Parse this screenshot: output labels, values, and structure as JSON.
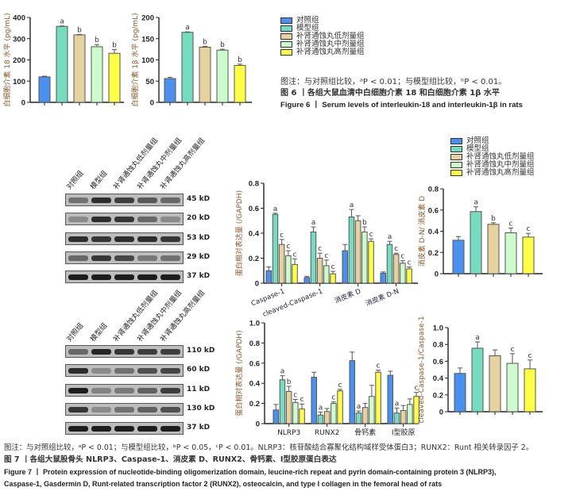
{
  "groups": [
    "对照组",
    "模型组",
    "补肾通蚀丸低剂量组",
    "补肾通蚀丸中剂量组",
    "补肾通蚀丸高剂量组"
  ],
  "group_colors": [
    "#4a90f0",
    "#76dcc0",
    "#e6d29f",
    "#ccfccc",
    "#ffff44"
  ],
  "figure6": {
    "note": "图注：与对照组比较，ᵃP < 0.01；与模型组比较，ᵇP < 0.01。",
    "title_cn": "图 6 丨各组大鼠血清中白细胞介素 18 和白细胞介素 1β 水平",
    "title_en": "Figure 6  丨  Serum levels of interleukin-18 and interleukin-1β in rats"
  },
  "figure7": {
    "note": "图注：与对照组比较，ᵃP < 0.01；与模型组比较，ᵇP < 0.05，ᶜP < 0.01。NLRP3：核苷酸结合寡聚化结构域样受体蛋白3；RUNX2：Runt 相关转录因子 2。",
    "title_cn": "图 7 丨各组大鼠股骨头 NLRP3、Caspase-1、消皮素 D、RUNX2、骨钙素、Ⅰ型胶原蛋白表达",
    "title_en_1": "Figure 7  丨  Protein expression of nucleotide-binding oligomerization domain, leucine-rich repeat and pyrin domain-containing protein 3 (NLRP3),",
    "title_en_2": "Caspase-1, Gasdermin D, Runt-related transcription factor 2 (RUNX2), osteocalcin, and type I collagen in the femoral head of rats"
  },
  "blot1": {
    "rows": [
      {
        "label": "Caspase-1",
        "kd": "45 kD"
      },
      {
        "label": "cleaved-Caspase-1",
        "kd": "20 kD"
      },
      {
        "label": "消皮素 D",
        "kd": "53 kD"
      },
      {
        "label": "消皮素 D-N",
        "kd": "29 kD"
      },
      {
        "label": "GAPDH",
        "kd": "37 kD"
      }
    ]
  },
  "blot2": {
    "rows": [
      {
        "label": "NLRP3",
        "kd": "110 kD"
      },
      {
        "label": "RUNX2",
        "kd": "60 kD"
      },
      {
        "label": "骨钙素",
        "kd": "11 kD"
      },
      {
        "label": "Ⅰ型胶原",
        "kd": "130 kD"
      },
      {
        "label": "GAPDH",
        "kd": "37 kD"
      }
    ]
  },
  "chart_data": [
    {
      "id": "il18",
      "type": "bar",
      "ylabel": "白细胞介素 18 水平 (pg/mL)",
      "ylim": [
        0,
        400
      ],
      "yticks": [
        "0",
        "100",
        "200",
        "300",
        "400"
      ],
      "categories": [
        ""
      ],
      "series_values": [
        [
          120
        ],
        [
          358
        ],
        [
          318
        ],
        [
          262
        ],
        [
          231
        ]
      ],
      "errors": [
        [
          3
        ],
        [
          2
        ],
        [
          2
        ],
        [
          10
        ],
        [
          18
        ]
      ],
      "sig": [
        [
          ""
        ],
        [
          "a"
        ],
        [
          "b"
        ],
        [
          "b"
        ],
        [
          "b"
        ]
      ]
    },
    {
      "id": "il1b",
      "type": "bar",
      "ylabel": "白细胞介素 1β 水平 (pg/mL)",
      "ylim": [
        0,
        200
      ],
      "yticks": [
        "0",
        "50",
        "100",
        "150",
        "200"
      ],
      "categories": [
        ""
      ],
      "series_values": [
        [
          56
        ],
        [
          165
        ],
        [
          130
        ],
        [
          123
        ],
        [
          87
        ]
      ],
      "errors": [
        [
          3
        ],
        [
          1
        ],
        [
          2
        ],
        [
          2
        ],
        [
          3
        ]
      ],
      "sig": [
        [
          ""
        ],
        [
          "a"
        ],
        [
          "b"
        ],
        [
          "b"
        ],
        [
          "b"
        ]
      ]
    },
    {
      "id": "pyro",
      "type": "bar",
      "ylabel": "蛋白相对表达量 (/GAPDH)",
      "ylim": [
        0,
        0.8
      ],
      "yticks": [
        "0",
        "0.2",
        "0.4",
        "0.6",
        "0.8"
      ],
      "categories": [
        "Caspase-1",
        "cleaved-Caspase-1",
        "消皮素 D",
        "消皮素 D-N"
      ],
      "series_values": [
        [
          0.1,
          0.045,
          0.26,
          0.08
        ],
        [
          0.55,
          0.41,
          0.53,
          0.31
        ],
        [
          0.31,
          0.2,
          0.5,
          0.23
        ],
        [
          0.22,
          0.14,
          0.41,
          0.16
        ],
        [
          0.15,
          0.075,
          0.335,
          0.115
        ]
      ],
      "errors": [
        [
          0.03,
          0.01,
          0.05,
          0.01
        ],
        [
          0.01,
          0.04,
          0.06,
          0.025
        ],
        [
          0.04,
          0.04,
          0.04,
          0.01
        ],
        [
          0.04,
          0.045,
          0.04,
          0.02
        ],
        [
          0.045,
          0.02,
          0.02,
          0.015
        ]
      ],
      "sig": [
        [
          "",
          "",
          "",
          ""
        ],
        [
          "a",
          "a",
          "a",
          "a"
        ],
        [
          "c",
          "c",
          "",
          "c"
        ],
        [
          "c",
          "c",
          "b",
          "c"
        ],
        [
          "c",
          "c",
          "c",
          "c"
        ]
      ]
    },
    {
      "id": "gsdmd_ratio",
      "type": "bar",
      "ylabel": "消皮素 D-N/ 消皮素 D",
      "ylim": [
        0,
        0.8
      ],
      "yticks": [
        "0",
        "0.2",
        "0.4",
        "0.6",
        "0.8"
      ],
      "categories": [
        ""
      ],
      "series_values": [
        [
          0.315
        ],
        [
          0.585
        ],
        [
          0.465
        ],
        [
          0.385
        ],
        [
          0.345
        ]
      ],
      "errors": [
        [
          0.035
        ],
        [
          0.045
        ],
        [
          0.015
        ],
        [
          0.045
        ],
        [
          0.035
        ]
      ],
      "sig": [
        [
          ""
        ],
        [
          "a"
        ],
        [
          "b"
        ],
        [
          "c"
        ],
        [
          "c"
        ]
      ]
    },
    {
      "id": "bone",
      "type": "bar",
      "ylabel": "蛋白相对表达量 (/GAPDH)",
      "ylim": [
        0,
        1.0
      ],
      "yticks": [
        "0",
        "0.2",
        "0.4",
        "0.6",
        "0.8",
        "1.0"
      ],
      "categories": [
        "NLRP3",
        "RUNX2",
        "骨钙素",
        "Ⅰ型胶原"
      ],
      "series_values": [
        [
          0.135,
          0.46,
          0.625,
          0.48
        ],
        [
          0.435,
          0.085,
          0.105,
          0.105
        ],
        [
          0.32,
          0.12,
          0.16,
          0.13
        ],
        [
          0.21,
          0.2,
          0.27,
          0.19
        ],
        [
          0.145,
          0.325,
          0.51,
          0.27
        ]
      ],
      "errors": [
        [
          0.055,
          0.05,
          0.085,
          0.04
        ],
        [
          0.04,
          0.03,
          0.02,
          0.05
        ],
        [
          0.05,
          0.03,
          0.04,
          0.05
        ],
        [
          0.03,
          0.015,
          0.11,
          0.055
        ],
        [
          0.05,
          0.015,
          0.02,
          0.04
        ]
      ],
      "sig": [
        [
          "",
          "",
          "",
          ""
        ],
        [
          "a",
          "a",
          "a",
          "a"
        ],
        [
          "b",
          "",
          "",
          ""
        ],
        [
          "c",
          "c",
          "",
          ""
        ],
        [
          "c",
          "c",
          "c",
          "c"
        ]
      ]
    },
    {
      "id": "casp_ratio",
      "type": "bar",
      "ylabel": "cleaved-Caspase-1/Caspase-1",
      "ylim": [
        0,
        1.0
      ],
      "yticks": [
        "0",
        "0.2",
        "0.4",
        "0.6",
        "0.8",
        "1.0"
      ],
      "categories": [
        ""
      ],
      "series_values": [
        [
          0.455
        ],
        [
          0.755
        ],
        [
          0.665
        ],
        [
          0.575
        ],
        [
          0.51
        ]
      ],
      "errors": [
        [
          0.065
        ],
        [
          0.075
        ],
        [
          0.07
        ],
        [
          0.115
        ],
        [
          0.105
        ]
      ],
      "sig": [
        [
          ""
        ],
        [
          "a"
        ],
        [
          ""
        ],
        [
          "c"
        ],
        [
          "c"
        ]
      ]
    }
  ]
}
